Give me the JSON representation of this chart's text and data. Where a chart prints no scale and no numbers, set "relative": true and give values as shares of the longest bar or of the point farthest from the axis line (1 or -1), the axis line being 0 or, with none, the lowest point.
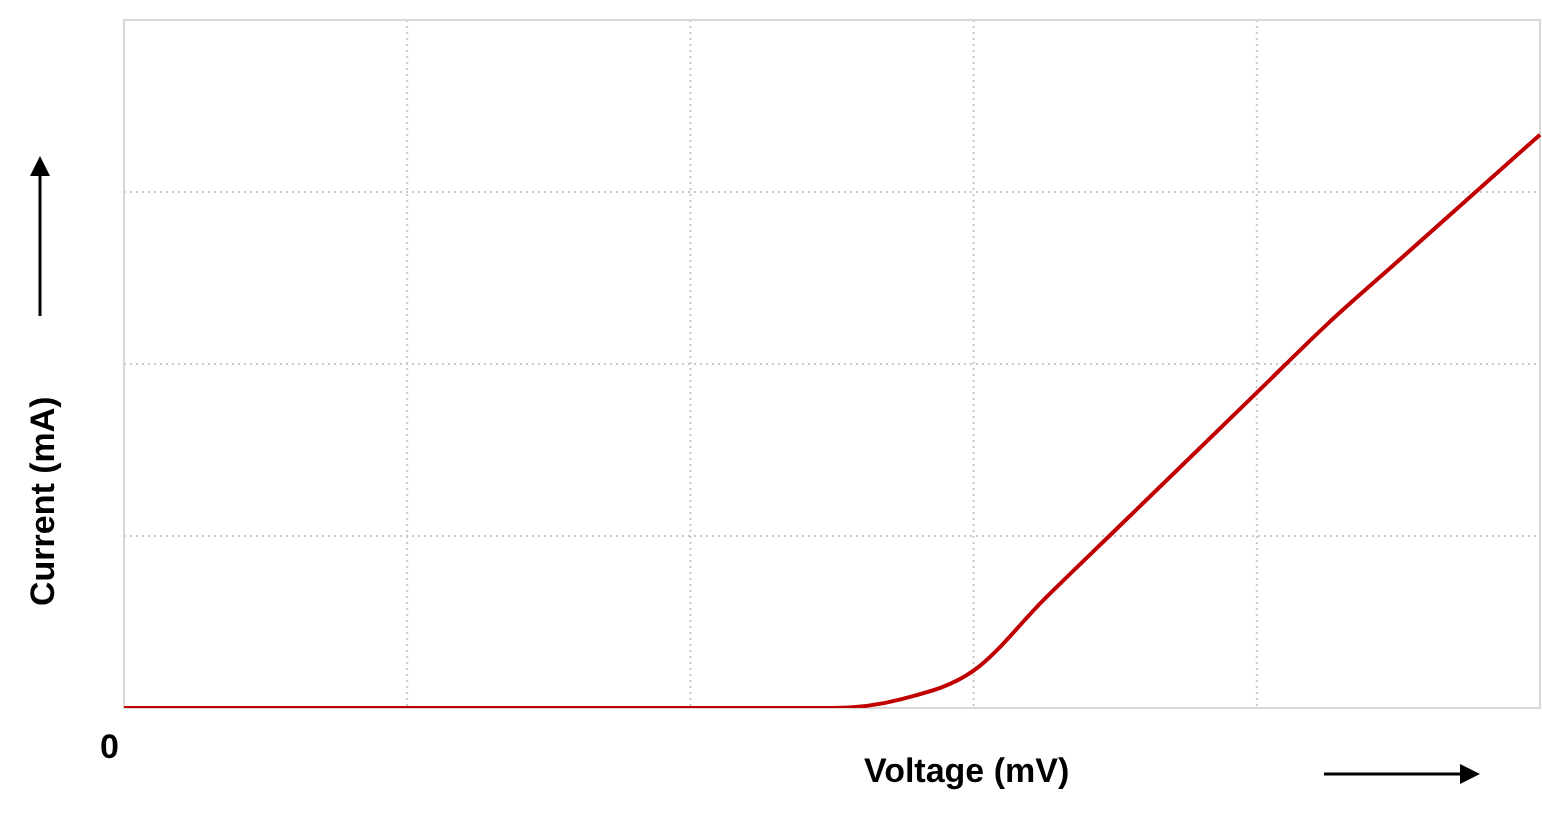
{
  "chart_data": {
    "type": "line",
    "relative": true,
    "xlabel": "Voltage (mV)",
    "ylabel": "Current (mA)",
    "annotations": [
      "0"
    ],
    "categories": [
      null,
      null,
      null,
      null,
      null,
      null,
      null,
      null,
      null,
      null,
      null,
      null,
      null,
      null,
      null,
      null,
      null,
      null,
      null,
      null,
      null
    ],
    "series": [
      {
        "color": "#c00000",
        "values": [
          0,
          0,
          0,
          0,
          0,
          0,
          0,
          0,
          0,
          0,
          0,
          0.016,
          0.065,
          0.19,
          0.31,
          0.43,
          0.55,
          0.67,
          0.78,
          0.89,
          1
        ]
      }
    ],
    "grid": true,
    "legend": false,
    "marker": "none",
    "line_style": "solid"
  }
}
